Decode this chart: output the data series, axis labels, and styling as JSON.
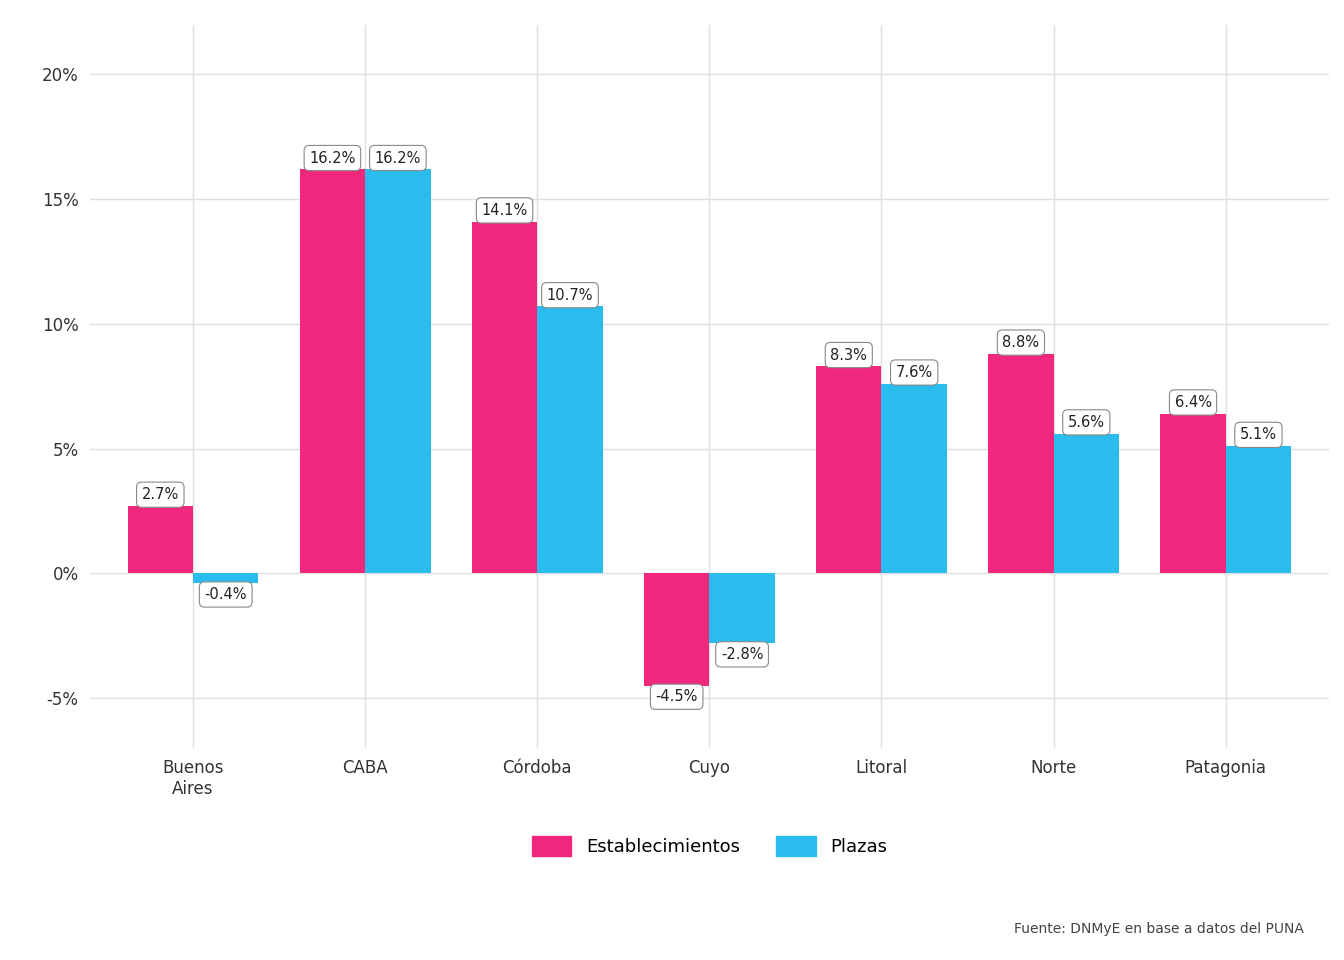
{
  "categories": [
    "Buenos\nAires",
    "CABA",
    "Córdoba",
    "Cuyo",
    "Litoral",
    "Norte",
    "Patagonia"
  ],
  "establecimientos": [
    2.7,
    16.2,
    14.1,
    -4.5,
    8.3,
    8.8,
    6.4
  ],
  "plazas": [
    -0.4,
    16.2,
    10.7,
    -2.8,
    7.6,
    5.6,
    5.1
  ],
  "color_estab": "#F0287D",
  "color_plazas": "#29BCEC",
  "bar_width": 0.38,
  "ylim": [
    -7,
    22
  ],
  "yticks": [
    -5,
    0,
    5,
    10,
    15,
    20
  ],
  "ytick_labels": [
    "-5%",
    "0%",
    "5%",
    "10%",
    "15%",
    "20%"
  ],
  "legend_estab": "Establecimientos",
  "legend_plazas": "Plazas",
  "source": "Fuente: DNMyE en base a datos del PUNA",
  "background_color": "#FFFFFF",
  "grid_color": "#E0E0E0",
  "label_fontsize": 10.5,
  "axis_tick_fontsize": 12,
  "source_fontsize": 10,
  "legend_fontsize": 13
}
